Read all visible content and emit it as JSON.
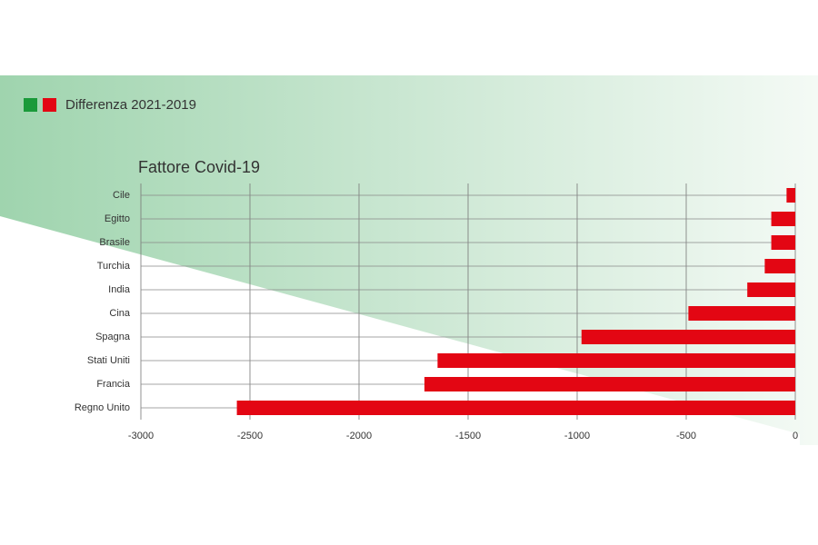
{
  "chart_data": {
    "type": "bar",
    "orientation": "horizontal",
    "title": "Fattore Covid-19",
    "categories": [
      "Cile",
      "Egitto",
      "Brasile",
      "Turchia",
      "India",
      "Cina",
      "Spagna",
      "Stati Uniti",
      "Francia",
      "Regno Unito"
    ],
    "series": [
      {
        "name": "Differenza 2021-2019",
        "color": "#e30613",
        "positive_color": "#1a9a3a",
        "values": [
          -40,
          -110,
          -110,
          -140,
          -220,
          -490,
          -980,
          -1640,
          -1700,
          -2560
        ]
      }
    ],
    "xlim": [
      -3000,
      0
    ],
    "xticks": [
      -3000,
      -2500,
      -2000,
      -1500,
      -1000,
      -500,
      0
    ],
    "grid": true
  }
}
